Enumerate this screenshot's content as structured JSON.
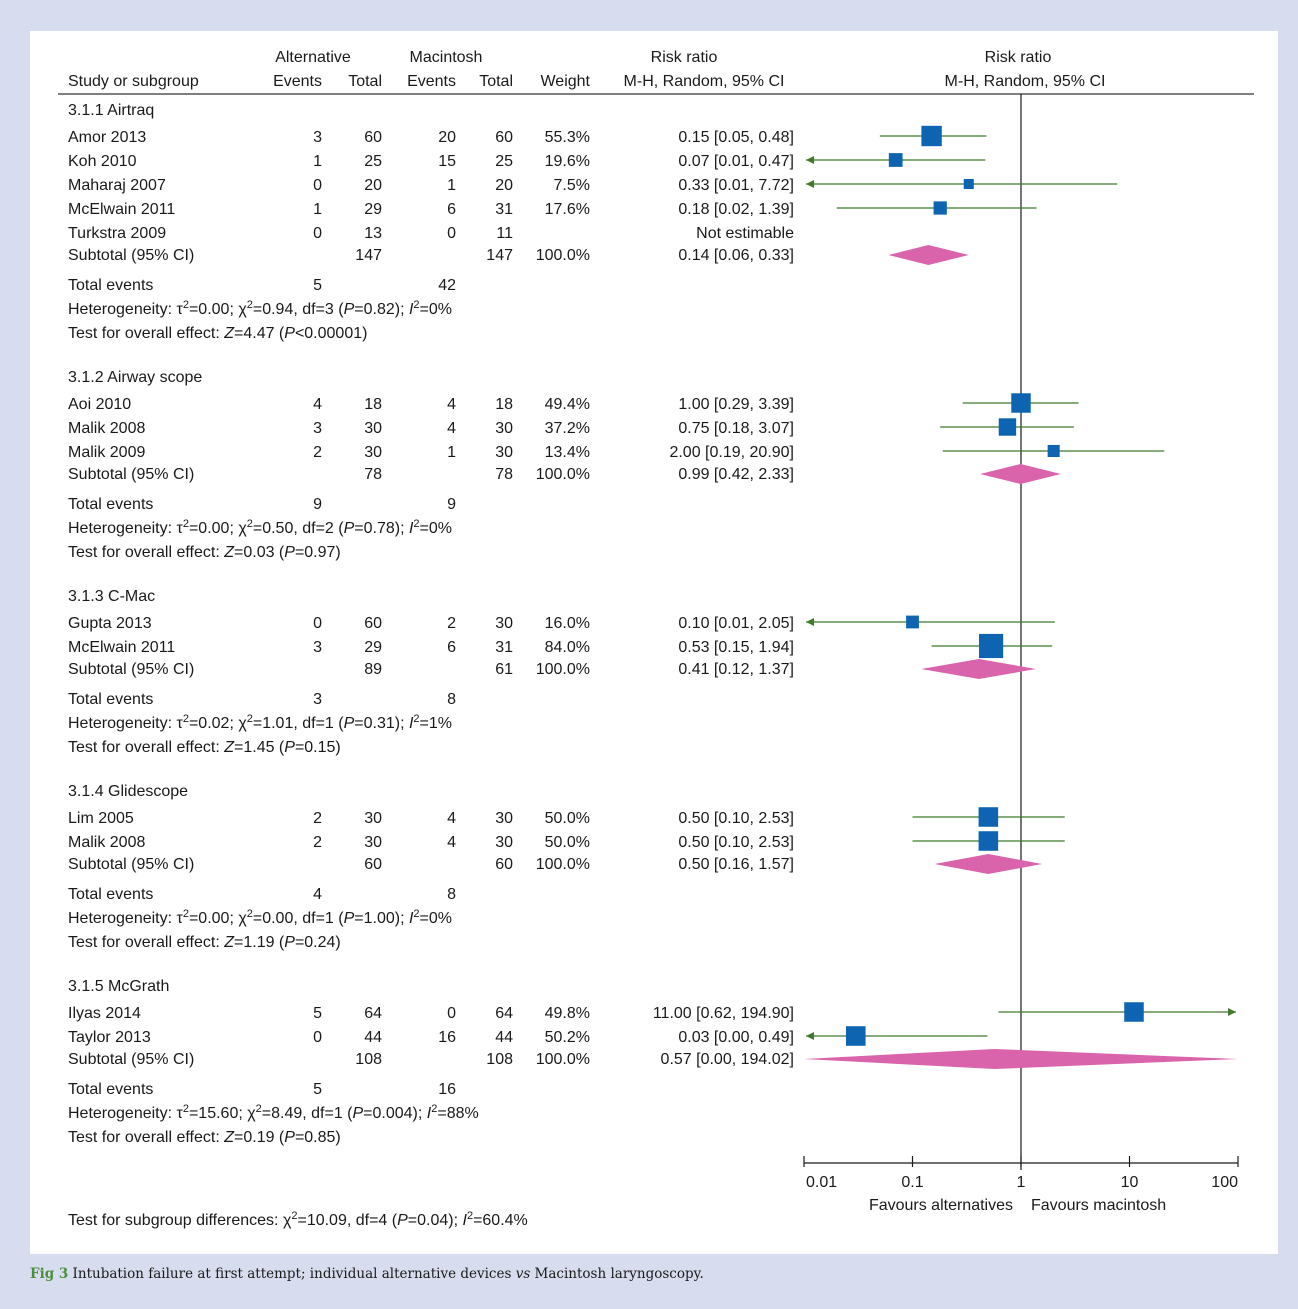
{
  "chart_data": {
    "type": "forest",
    "title": "",
    "headers": {
      "study": "Study or subgroup",
      "group1": "Alternative",
      "group2": "Macintosh",
      "events": "Events",
      "total": "Total",
      "weight": "Weight",
      "rr_table_1": "Risk ratio",
      "rr_table_2": "M-H, Random, 95% CI",
      "rr_plot_1": "Risk ratio",
      "rr_plot_2": "M-H, Random, 95% CI"
    },
    "x_axis": {
      "scale": "log",
      "range": [
        0.01,
        100
      ],
      "ticks": [
        0.01,
        0.1,
        1,
        10,
        100
      ],
      "tick_labels": [
        "0.01",
        "0.1",
        "1",
        "10",
        "100"
      ],
      "null_line": 1
    },
    "favours_left": "Favours alternatives",
    "favours_right": "Favours macintosh",
    "subgroups": [
      {
        "name": "3.1.1 Airtraq",
        "studies": [
          {
            "name": "Amor 2013",
            "e1": "3",
            "n1": "60",
            "e2": "20",
            "n2": "60",
            "weight": "55.3%",
            "ci_text": "0.15 [0.05, 0.48]",
            "rr": 0.15,
            "lo": 0.05,
            "hi": 0.48,
            "w": 55.3
          },
          {
            "name": "Koh 2010",
            "e1": "1",
            "n1": "25",
            "e2": "15",
            "n2": "25",
            "weight": "19.6%",
            "ci_text": "0.07 [0.01, 0.47]",
            "rr": 0.07,
            "lo": 0.01,
            "hi": 0.47,
            "w": 19.6
          },
          {
            "name": "Maharaj 2007",
            "e1": "0",
            "n1": "20",
            "e2": "1",
            "n2": "20",
            "weight": "7.5%",
            "ci_text": "0.33 [0.01, 7.72]",
            "rr": 0.33,
            "lo": 0.01,
            "hi": 7.72,
            "w": 7.5
          },
          {
            "name": "McElwain 2011",
            "e1": "1",
            "n1": "29",
            "e2": "6",
            "n2": "31",
            "weight": "17.6%",
            "ci_text": "0.18 [0.02, 1.39]",
            "rr": 0.18,
            "lo": 0.02,
            "hi": 1.39,
            "w": 17.6
          },
          {
            "name": "Turkstra 2009",
            "e1": "0",
            "n1": "13",
            "e2": "0",
            "n2": "11",
            "weight": "",
            "ci_text": "Not estimable"
          }
        ],
        "subtotal": {
          "label": "Subtotal (95% CI)",
          "n1": "147",
          "n2": "147",
          "weight": "100.0%",
          "ci_text": "0.14 [0.06, 0.33]",
          "rr": 0.14,
          "lo": 0.06,
          "hi": 0.33
        },
        "total_events": {
          "label": "Total events",
          "e1": "5",
          "e2": "42"
        },
        "heterogeneity": {
          "tau2": "0.00",
          "chi2": "0.94",
          "df": "3",
          "p": "0.82",
          "i2": "0%"
        },
        "overall": {
          "z": "4.47",
          "p": "<0.00001"
        }
      },
      {
        "name": "3.1.2 Airway scope",
        "studies": [
          {
            "name": "Aoi 2010",
            "e1": "4",
            "n1": "18",
            "e2": "4",
            "n2": "18",
            "weight": "49.4%",
            "ci_text": "1.00 [0.29, 3.39]",
            "rr": 1.0,
            "lo": 0.29,
            "hi": 3.39,
            "w": 49.4
          },
          {
            "name": "Malik 2008",
            "e1": "3",
            "n1": "30",
            "e2": "4",
            "n2": "30",
            "weight": "37.2%",
            "ci_text": "0.75 [0.18, 3.07]",
            "rr": 0.75,
            "lo": 0.18,
            "hi": 3.07,
            "w": 37.2
          },
          {
            "name": "Malik 2009",
            "e1": "2",
            "n1": "30",
            "e2": "1",
            "n2": "30",
            "weight": "13.4%",
            "ci_text": "2.00 [0.19, 20.90]",
            "rr": 2.0,
            "lo": 0.19,
            "hi": 20.9,
            "w": 13.4
          }
        ],
        "subtotal": {
          "label": "Subtotal (95% CI)",
          "n1": "78",
          "n2": "78",
          "weight": "100.0%",
          "ci_text": "0.99 [0.42, 2.33]",
          "rr": 0.99,
          "lo": 0.42,
          "hi": 2.33
        },
        "total_events": {
          "label": "Total events",
          "e1": "9",
          "e2": "9"
        },
        "heterogeneity": {
          "tau2": "0.00",
          "chi2": "0.50",
          "df": "2",
          "p": "0.78",
          "i2": "0%"
        },
        "overall": {
          "z": "0.03",
          "p": "=0.97"
        }
      },
      {
        "name": "3.1.3 C-Mac",
        "studies": [
          {
            "name": "Gupta 2013",
            "e1": "0",
            "n1": "60",
            "e2": "2",
            "n2": "30",
            "weight": "16.0%",
            "ci_text": "0.10 [0.01, 2.05]",
            "rr": 0.1,
            "lo": 0.01,
            "hi": 2.05,
            "w": 16.0
          },
          {
            "name": "McElwain 2011",
            "e1": "3",
            "n1": "29",
            "e2": "6",
            "n2": "31",
            "weight": "84.0%",
            "ci_text": "0.53 [0.15, 1.94]",
            "rr": 0.53,
            "lo": 0.15,
            "hi": 1.94,
            "w": 84.0
          }
        ],
        "subtotal": {
          "label": "Subtotal (95% CI)",
          "n1": "89",
          "n2": "61",
          "weight": "100.0%",
          "ci_text": "0.41 [0.12, 1.37]",
          "rr": 0.41,
          "lo": 0.12,
          "hi": 1.37
        },
        "total_events": {
          "label": "Total events",
          "e1": "3",
          "e2": "8"
        },
        "heterogeneity": {
          "tau2": "0.02",
          "chi2": "1.01",
          "df": "1",
          "p": "0.31",
          "i2": "1%"
        },
        "overall": {
          "z": "1.45",
          "p": "=0.15"
        }
      },
      {
        "name": "3.1.4 Glidescope",
        "studies": [
          {
            "name": "Lim 2005",
            "e1": "2",
            "n1": "30",
            "e2": "4",
            "n2": "30",
            "weight": "50.0%",
            "ci_text": "0.50 [0.10, 2.53]",
            "rr": 0.5,
            "lo": 0.1,
            "hi": 2.53,
            "w": 50.0
          },
          {
            "name": "Malik 2008",
            "e1": "2",
            "n1": "30",
            "e2": "4",
            "n2": "30",
            "weight": "50.0%",
            "ci_text": "0.50 [0.10, 2.53]",
            "rr": 0.5,
            "lo": 0.1,
            "hi": 2.53,
            "w": 50.0
          }
        ],
        "subtotal": {
          "label": "Subtotal (95% CI)",
          "n1": "60",
          "n2": "60",
          "weight": "100.0%",
          "ci_text": "0.50 [0.16, 1.57]",
          "rr": 0.5,
          "lo": 0.16,
          "hi": 1.57
        },
        "total_events": {
          "label": "Total events",
          "e1": "4",
          "e2": "8"
        },
        "heterogeneity": {
          "tau2": "0.00",
          "chi2": "0.00",
          "df": "1",
          "p": "1.00",
          "i2": "0%"
        },
        "overall": {
          "z": "1.19",
          "p": "=0.24"
        }
      },
      {
        "name": "3.1.5 McGrath",
        "studies": [
          {
            "name": "Ilyas 2014",
            "e1": "5",
            "n1": "64",
            "e2": "0",
            "n2": "64",
            "weight": "49.8%",
            "ci_text": "11.00 [0.62, 194.90]",
            "rr": 11.0,
            "lo": 0.62,
            "hi": 194.9,
            "w": 49.8
          },
          {
            "name": "Taylor 2013",
            "e1": "0",
            "n1": "44",
            "e2": "16",
            "n2": "44",
            "weight": "50.2%",
            "ci_text": "0.03 [0.00, 0.49]",
            "rr": 0.03,
            "lo": 0.0,
            "hi": 0.49,
            "w": 50.2
          }
        ],
        "subtotal": {
          "label": "Subtotal (95% CI)",
          "n1": "108",
          "n2": "108",
          "weight": "100.0%",
          "ci_text": "0.57 [0.00, 194.02]",
          "rr": 0.57,
          "lo": 0.0,
          "hi": 194.02
        },
        "total_events": {
          "label": "Total events",
          "e1": "5",
          "e2": "16"
        },
        "heterogeneity": {
          "tau2": "15.60",
          "chi2": "8.49",
          "df": "1",
          "p": "0.004",
          "i2": "88%"
        },
        "overall": {
          "z": "0.19",
          "p": "=0.85"
        }
      }
    ],
    "subgroup_differences": {
      "chi2": "10.09",
      "df": "4",
      "p": "0.04",
      "i2": "60.4%"
    },
    "colors": {
      "square": "#0e64b0",
      "ci_line": "#3f7a2c",
      "diamond": "#d964ac",
      "background": "#d8dcef"
    }
  },
  "caption": {
    "label": "Fig 3",
    "text_1": "Intubation failure at first attempt; individual alternative devices ",
    "vs": "vs",
    "text_2": " Macintosh laryngoscopy."
  }
}
